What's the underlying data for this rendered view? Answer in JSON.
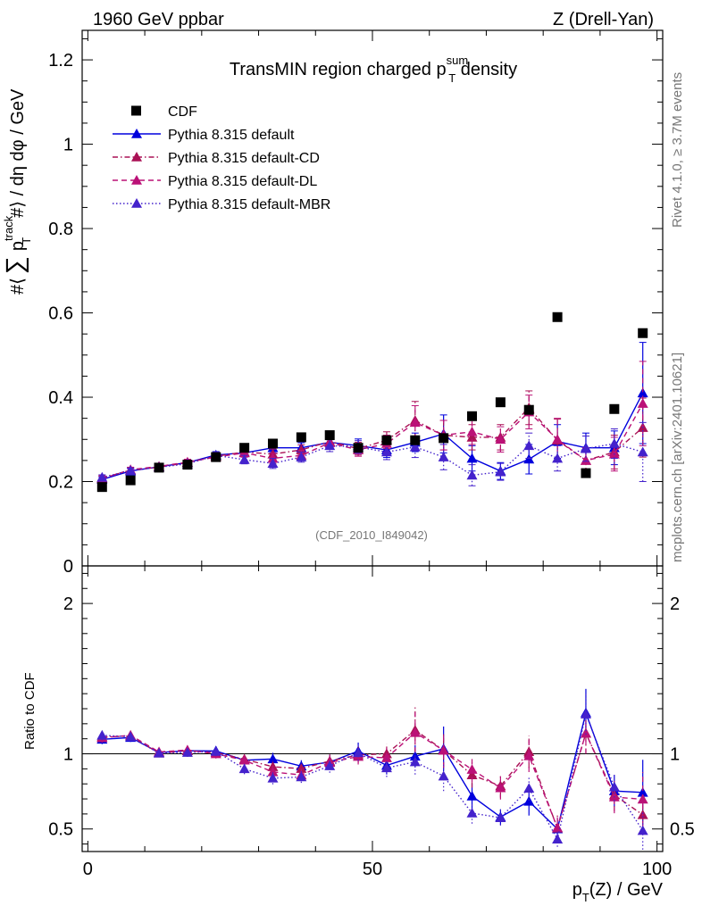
{
  "header": {
    "left": "1960 GeV ppbar",
    "right": "Z (Drell-Yan)"
  },
  "side_text": {
    "rivet": "Rivet 4.1.0, ≥ 3.7M events",
    "mcplots": "mcplots.cern.ch [arXiv:2401.10621]"
  },
  "chart_data": {
    "type": "scatter",
    "title": {
      "prefix": "TransMIN region charged p",
      "sup": "sum",
      "sub": "T",
      "suffix": " density"
    },
    "analysis_id": "(CDF_2010_I849042)",
    "xlabel": "p_T(Z) / GeV",
    "xlabel_main": "p",
    "xlabel_sub": "T",
    "xlabel_rest": "(Z) / GeV",
    "ylabel": "#⟨ ∑ p_T^track #⟩ / dη dφ / GeV",
    "ylabel_parts": {
      "pre": "#⟨",
      "sum": "∑",
      "p": "p",
      "sup": "track",
      "sub": "T",
      "post": "#⟩ / dη dφ / GeV"
    },
    "ratio_ylabel": "Ratio to CDF",
    "xlim": [
      -1,
      101
    ],
    "ylim": [
      0,
      1.27
    ],
    "ratio_ylim": [
      0.35,
      2.25
    ],
    "x_ticks": [
      0,
      50,
      100
    ],
    "x_tick_labels": [
      "0",
      "50",
      "100"
    ],
    "y_ticks": [
      0,
      0.2,
      0.4,
      0.6,
      0.8,
      1,
      1.2
    ],
    "y_tick_labels": [
      "0",
      "0.2",
      "0.4",
      "0.6",
      "0.8",
      "1",
      "1.2"
    ],
    "ratio_ticks": [
      0.5,
      1,
      2
    ],
    "ratio_tick_labels": [
      "0.5",
      "1",
      "2"
    ],
    "x": [
      2.5,
      7.5,
      12.5,
      17.5,
      22.5,
      27.5,
      32.5,
      37.5,
      42.5,
      47.5,
      52.5,
      57.5,
      62.5,
      67.5,
      72.5,
      77.5,
      82.5,
      87.5,
      92.5,
      97.5
    ],
    "data": {
      "name": "CDF",
      "color": "#000000",
      "values": [
        0.187,
        0.203,
        0.233,
        0.24,
        0.258,
        0.28,
        0.29,
        0.305,
        0.31,
        0.28,
        0.298,
        0.298,
        0.303,
        0.355,
        0.388,
        0.37,
        0.59,
        0.22,
        0.372,
        0.552
      ]
    },
    "series": [
      {
        "name": "Pythia 8.315 default",
        "color": "#0000dd",
        "dash": "",
        "values": [
          0.205,
          0.225,
          0.235,
          0.245,
          0.263,
          0.268,
          0.28,
          0.28,
          0.293,
          0.285,
          0.275,
          0.293,
          0.313,
          0.255,
          0.225,
          0.253,
          0.295,
          0.28,
          0.28,
          0.41
        ],
        "errors": [
          0.006,
          0.006,
          0.006,
          0.007,
          0.008,
          0.01,
          0.012,
          0.012,
          0.014,
          0.016,
          0.018,
          0.022,
          0.045,
          0.03,
          0.02,
          0.035,
          0.04,
          0.035,
          0.04,
          0.12
        ]
      },
      {
        "name": "Pythia 8.315 default-CD",
        "color": "#aa1155",
        "dash": "6 3 1.5 3",
        "values": [
          0.208,
          0.227,
          0.234,
          0.245,
          0.26,
          0.27,
          0.265,
          0.275,
          0.295,
          0.278,
          0.298,
          0.345,
          0.31,
          0.305,
          0.305,
          0.375,
          0.298,
          0.25,
          0.27,
          0.328
        ],
        "errors": [
          0.006,
          0.006,
          0.006,
          0.007,
          0.008,
          0.01,
          0.012,
          0.012,
          0.014,
          0.015,
          0.02,
          0.045,
          0.035,
          0.03,
          0.03,
          0.04,
          0.05,
          0.03,
          0.04,
          0.07
        ]
      },
      {
        "name": "Pythia 8.315 default-DL",
        "color": "#bb1177",
        "dash": "6 4",
        "values": [
          0.207,
          0.228,
          0.236,
          0.246,
          0.258,
          0.268,
          0.255,
          0.262,
          0.292,
          0.275,
          0.29,
          0.34,
          0.31,
          0.318,
          0.3,
          0.365,
          0.3,
          0.25,
          0.265,
          0.385
        ],
        "errors": [
          0.006,
          0.006,
          0.006,
          0.007,
          0.008,
          0.01,
          0.012,
          0.012,
          0.014,
          0.015,
          0.02,
          0.04,
          0.035,
          0.03,
          0.03,
          0.04,
          0.05,
          0.03,
          0.04,
          0.1
        ]
      },
      {
        "name": "Pythia 8.315 default-MBR",
        "color": "#4422cc",
        "dash": "1.5 2.5",
        "values": [
          0.21,
          0.226,
          0.234,
          0.242,
          0.262,
          0.252,
          0.243,
          0.258,
          0.285,
          0.282,
          0.27,
          0.282,
          0.258,
          0.215,
          0.223,
          0.285,
          0.255,
          0.278,
          0.29,
          0.27
        ],
        "errors": [
          0.006,
          0.006,
          0.006,
          0.007,
          0.008,
          0.01,
          0.012,
          0.012,
          0.014,
          0.015,
          0.018,
          0.025,
          0.03,
          0.025,
          0.02,
          0.03,
          0.03,
          0.03,
          0.035,
          0.07
        ]
      }
    ]
  }
}
